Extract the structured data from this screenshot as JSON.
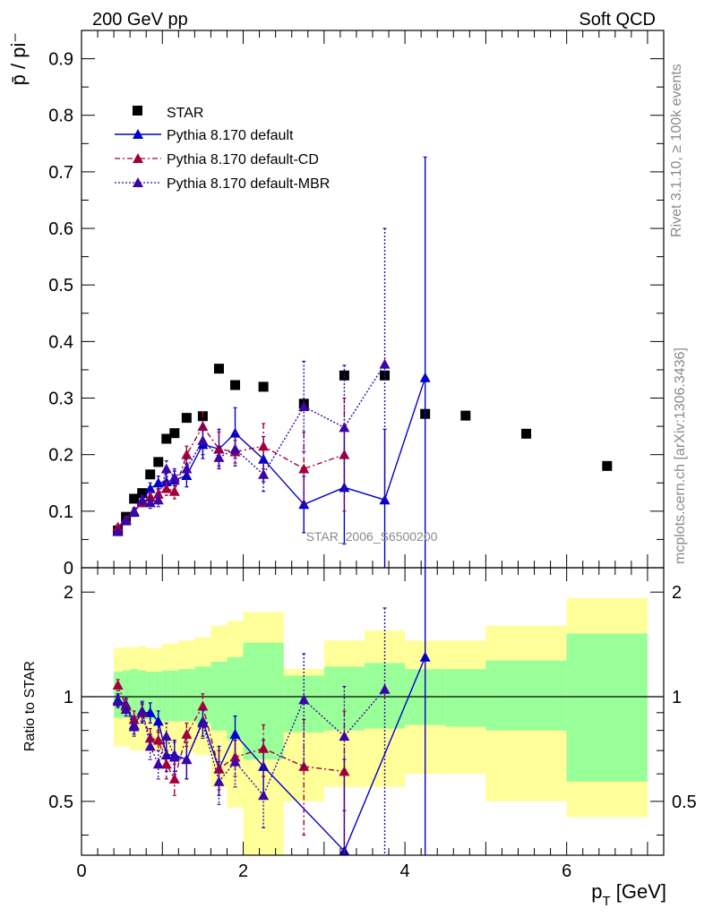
{
  "header": {
    "left": "200 GeV pp",
    "right": "Soft QCD",
    "side_rivet": "Rivet 3.1.10, ≥ 100k events",
    "side_mcplots": "mcplots.cern.ch [arXiv:1306.3436]",
    "analysis_id": "STAR_2006_S6500200"
  },
  "legend": {
    "star": "STAR",
    "default": "Pythia 8.170 default",
    "cd": "Pythia 8.170 default-CD",
    "mbr": "Pythia 8.170 default-MBR"
  },
  "colors": {
    "data": "#000000",
    "default": "#0000cc",
    "cd": "#a3003a",
    "mbr": "#3b06a8",
    "band_outer": "#ffff99",
    "band_inner": "#99ff99"
  },
  "chart_data": [
    {
      "type": "scatter",
      "ylabel": "p̄ / pi⁻",
      "ylim": [
        0,
        0.95
      ],
      "xlim": [
        0,
        7.2
      ],
      "y_ticks": [
        "0",
        "0.1",
        "0.2",
        "0.3",
        "0.4",
        "0.5",
        "0.6",
        "0.7",
        "0.8",
        "0.9"
      ],
      "star": {
        "x": [
          0.45,
          0.55,
          0.65,
          0.75,
          0.85,
          0.95,
          1.05,
          1.15,
          1.3,
          1.5,
          1.7,
          1.9,
          2.25,
          2.75,
          3.25,
          3.75,
          4.25,
          4.75,
          5.5,
          6.5
        ],
        "y": [
          0.066,
          0.09,
          0.122,
          0.132,
          0.165,
          0.187,
          0.228,
          0.238,
          0.265,
          0.268,
          0.352,
          0.323,
          0.32,
          0.29,
          0.34,
          0.34,
          0.272,
          0.269,
          0.237,
          0.18
        ]
      },
      "series": [
        {
          "name": "Pythia 8.170 default",
          "x": [
            0.45,
            0.55,
            0.65,
            0.75,
            0.85,
            0.95,
            1.05,
            1.15,
            1.3,
            1.5,
            1.7,
            1.9,
            2.25,
            2.75,
            3.25,
            3.75,
            4.25
          ],
          "y": [
            0.065,
            0.086,
            0.098,
            0.118,
            0.14,
            0.15,
            0.152,
            0.155,
            0.163,
            0.218,
            0.21,
            0.238,
            0.192,
            0.112,
            0.142,
            0.12,
            0.336
          ],
          "err": [
            0.004,
            0.005,
            0.006,
            0.008,
            0.01,
            0.012,
            0.015,
            0.016,
            0.02,
            0.025,
            0.035,
            0.045,
            0.04,
            0.05,
            0.1,
            0.125,
            0.39
          ]
        },
        {
          "name": "Pythia 8.170 default-CD",
          "x": [
            0.45,
            0.55,
            0.65,
            0.75,
            0.85,
            0.95,
            1.05,
            1.15,
            1.3,
            1.5,
            1.7,
            1.9,
            2.25,
            2.75,
            3.25
          ],
          "y": [
            0.072,
            0.085,
            0.1,
            0.115,
            0.125,
            0.13,
            0.14,
            0.135,
            0.2,
            0.25,
            0.21,
            0.205,
            0.215,
            0.175,
            0.2
          ],
          "err": [
            0.004,
            0.005,
            0.006,
            0.007,
            0.009,
            0.01,
            0.012,
            0.013,
            0.015,
            0.025,
            0.03,
            0.02,
            0.04,
            0.065,
            0.1
          ]
        },
        {
          "name": "Pythia 8.170 default-MBR",
          "x": [
            0.45,
            0.55,
            0.65,
            0.75,
            0.85,
            0.95,
            1.05,
            1.15,
            1.3,
            1.5,
            1.7,
            1.9,
            2.25,
            2.75,
            3.25,
            3.75
          ],
          "y": [
            0.064,
            0.083,
            0.1,
            0.12,
            0.115,
            0.12,
            0.175,
            0.16,
            0.175,
            0.225,
            0.195,
            0.21,
            0.165,
            0.285,
            0.248,
            0.36
          ],
          "err": [
            0.004,
            0.005,
            0.006,
            0.008,
            0.01,
            0.012,
            0.014,
            0.015,
            0.018,
            0.025,
            0.02,
            0.03,
            0.03,
            0.08,
            0.11,
            0.24
          ]
        }
      ]
    },
    {
      "type": "scatter",
      "ylabel": "Ratio to STAR",
      "xlabel": "p_T [GeV]",
      "ylim": [
        0.35,
        2.35
      ],
      "y_scale": "log",
      "xlim": [
        0,
        7.2
      ],
      "x_ticks": [
        "0",
        "2",
        "4",
        "6"
      ],
      "y_ticks": [
        "0.5",
        "1",
        "2"
      ],
      "bands": {
        "xlo": [
          0.4,
          0.5,
          0.6,
          0.7,
          0.8,
          0.9,
          1.0,
          1.1,
          1.2,
          1.4,
          1.6,
          1.8,
          2.0,
          2.5,
          3.0,
          3.5,
          4.0,
          4.5,
          5.0,
          6.0
        ],
        "xhi": [
          0.5,
          0.6,
          0.7,
          0.8,
          0.9,
          1.0,
          1.1,
          1.2,
          1.4,
          1.6,
          1.8,
          2.0,
          2.5,
          3.0,
          3.5,
          4.0,
          4.5,
          5.0,
          6.0,
          7.0
        ],
        "outer_lo": [
          0.72,
          0.72,
          0.7,
          0.7,
          0.7,
          0.7,
          0.69,
          0.69,
          0.69,
          0.68,
          0.55,
          0.48,
          0.35,
          0.5,
          0.55,
          0.55,
          0.6,
          0.6,
          0.5,
          0.45
        ],
        "outer_hi": [
          1.38,
          1.39,
          1.39,
          1.4,
          1.38,
          1.38,
          1.42,
          1.42,
          1.45,
          1.48,
          1.6,
          1.65,
          1.75,
          1.2,
          1.45,
          1.55,
          1.45,
          1.45,
          1.6,
          1.92
        ],
        "inner_lo": [
          0.87,
          0.87,
          0.87,
          0.86,
          0.86,
          0.86,
          0.85,
          0.85,
          0.85,
          0.84,
          0.8,
          0.75,
          0.66,
          0.79,
          0.8,
          0.81,
          0.83,
          0.82,
          0.8,
          0.57
        ],
        "inner_hi": [
          1.18,
          1.19,
          1.2,
          1.19,
          1.18,
          1.18,
          1.19,
          1.19,
          1.2,
          1.22,
          1.26,
          1.3,
          1.43,
          1.15,
          1.22,
          1.25,
          1.2,
          1.2,
          1.27,
          1.52
        ]
      },
      "series": [
        {
          "name": "Pythia 8.170 default",
          "x": [
            0.45,
            0.55,
            0.65,
            0.75,
            0.85,
            0.95,
            1.05,
            1.15,
            1.3,
            1.5,
            1.7,
            1.9,
            2.25,
            3.25,
            4.25
          ],
          "y": [
            0.98,
            0.95,
            0.83,
            0.9,
            0.9,
            0.85,
            0.68,
            0.68,
            0.66,
            0.85,
            0.62,
            0.78,
            0.63,
            0.36,
            1.3
          ],
          "err": [
            0.04,
            0.04,
            0.05,
            0.06,
            0.06,
            0.06,
            0.07,
            0.07,
            0.08,
            0.08,
            0.1,
            0.1,
            0.12,
            0.3,
            1.3
          ]
        },
        {
          "name": "Pythia 8.170 default-CD",
          "x": [
            0.45,
            0.55,
            0.65,
            0.75,
            0.85,
            0.95,
            1.05,
            1.15,
            1.3,
            1.5,
            1.7,
            1.9,
            2.25,
            2.75,
            3.25
          ],
          "y": [
            1.08,
            0.94,
            0.86,
            0.9,
            0.76,
            0.75,
            0.64,
            0.58,
            0.78,
            0.94,
            0.62,
            0.67,
            0.71,
            0.63,
            0.61
          ],
          "err": [
            0.04,
            0.04,
            0.05,
            0.05,
            0.05,
            0.05,
            0.06,
            0.06,
            0.06,
            0.08,
            0.08,
            0.08,
            0.12,
            0.23,
            0.3
          ]
        },
        {
          "name": "Pythia 8.170 default-MBR",
          "x": [
            0.45,
            0.55,
            0.65,
            0.75,
            0.85,
            0.95,
            1.05,
            1.15,
            1.3,
            1.5,
            1.7,
            1.9,
            2.25,
            2.75,
            3.25,
            3.75
          ],
          "y": [
            0.97,
            0.92,
            0.82,
            0.91,
            0.72,
            0.64,
            0.77,
            0.67,
            0.66,
            0.84,
            0.57,
            0.65,
            0.52,
            0.98,
            0.77,
            1.05
          ],
          "err": [
            0.04,
            0.04,
            0.05,
            0.06,
            0.06,
            0.06,
            0.07,
            0.07,
            0.08,
            0.08,
            0.08,
            0.1,
            0.1,
            0.35,
            0.3,
            0.75
          ]
        }
      ]
    }
  ]
}
